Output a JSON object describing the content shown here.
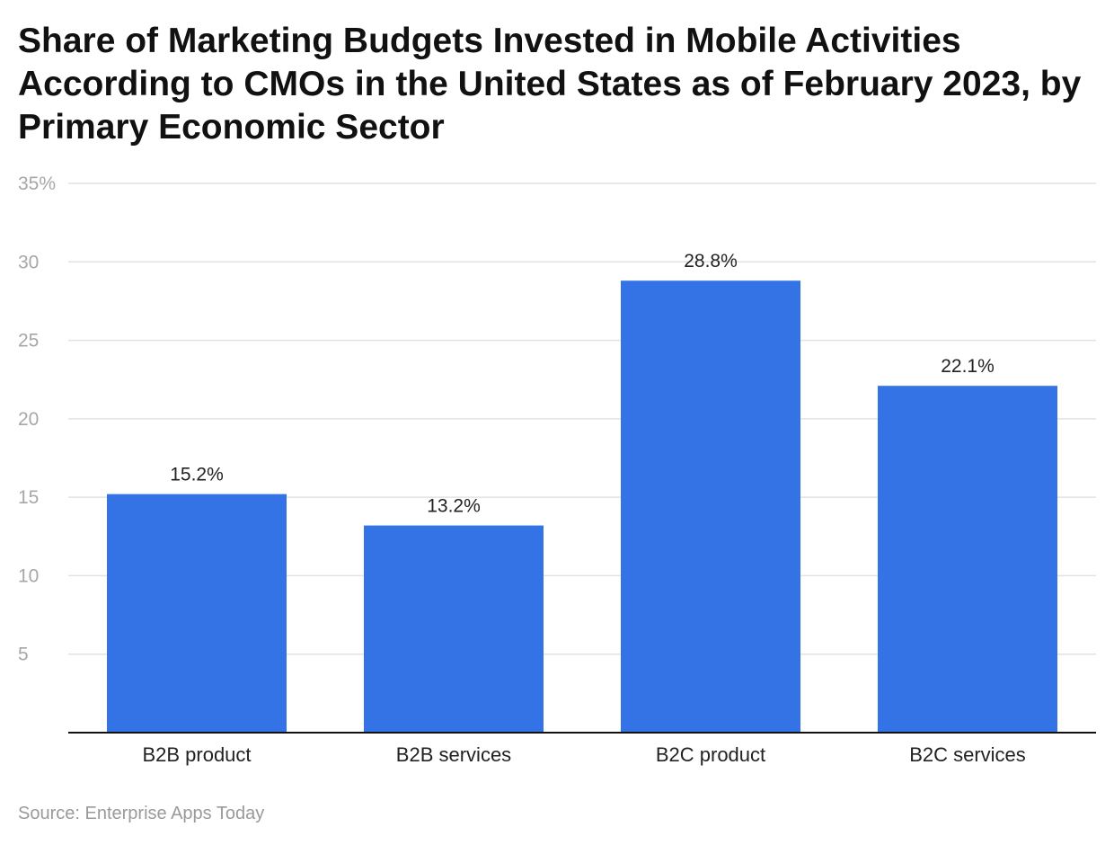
{
  "chart_data": {
    "type": "bar",
    "title": "Share of Marketing Budgets Invested in Mobile Activities According to CMOs in the United States as of February 2023, by Primary Economic Sector",
    "categories": [
      "B2B product",
      "B2B services",
      "B2C product",
      "B2C services"
    ],
    "values": [
      15.2,
      13.2,
      28.8,
      22.1
    ],
    "data_labels": [
      "15.2%",
      "13.2%",
      "28.8%",
      "22.1%"
    ],
    "y_ticks": [
      5,
      10,
      15,
      20,
      25,
      30,
      35
    ],
    "y_tick_labels": [
      "5",
      "10",
      "15",
      "20",
      "25",
      "30",
      "35%"
    ],
    "ylim": [
      0,
      35
    ],
    "xlabel": "",
    "ylabel": "",
    "grid": true,
    "bar_color": "#3373e6",
    "gridline_color": "#e2e2e2"
  },
  "source": "Source: Enterprise Apps Today"
}
